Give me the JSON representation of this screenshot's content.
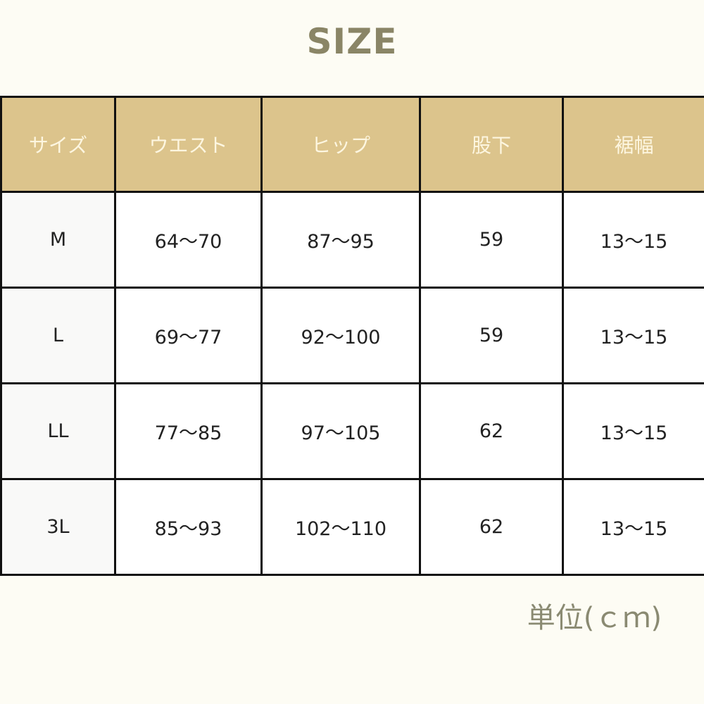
{
  "title": "SIZE",
  "table": {
    "headers": [
      "サイズ",
      "ウエスト",
      "ヒップ",
      "股下",
      "裾幅"
    ],
    "rows": [
      [
        "M",
        "64〜70",
        "87〜95",
        "59",
        "13〜15"
      ],
      [
        "L",
        "69〜77",
        "92〜100",
        "59",
        "13〜15"
      ],
      [
        "LL",
        "77〜85",
        "97〜105",
        "62",
        "13〜15"
      ],
      [
        "3L",
        "85〜93",
        "102〜110",
        "62",
        "13〜15"
      ]
    ]
  },
  "unit": "単位(ｃｍ)",
  "colors": {
    "header_bg": "#dcc48c",
    "title": "#8a8566",
    "background": "#fdfcf4"
  }
}
